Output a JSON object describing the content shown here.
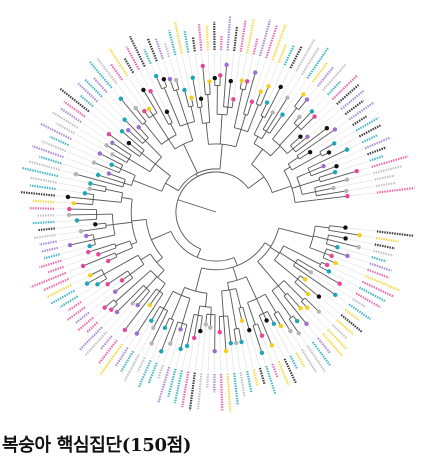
{
  "caption": "복숭아 핵심집단(150점)",
  "tree": {
    "type": "circular-dendrogram",
    "leaf_count": 150,
    "colors": {
      "branch": "#555555",
      "guide": "#d9d9d9",
      "palette": [
        "#e8469a",
        "#f4d01c",
        "#1aa7b8",
        "#111111",
        "#9b6fd0",
        "#b5b5b5"
      ]
    }
  }
}
